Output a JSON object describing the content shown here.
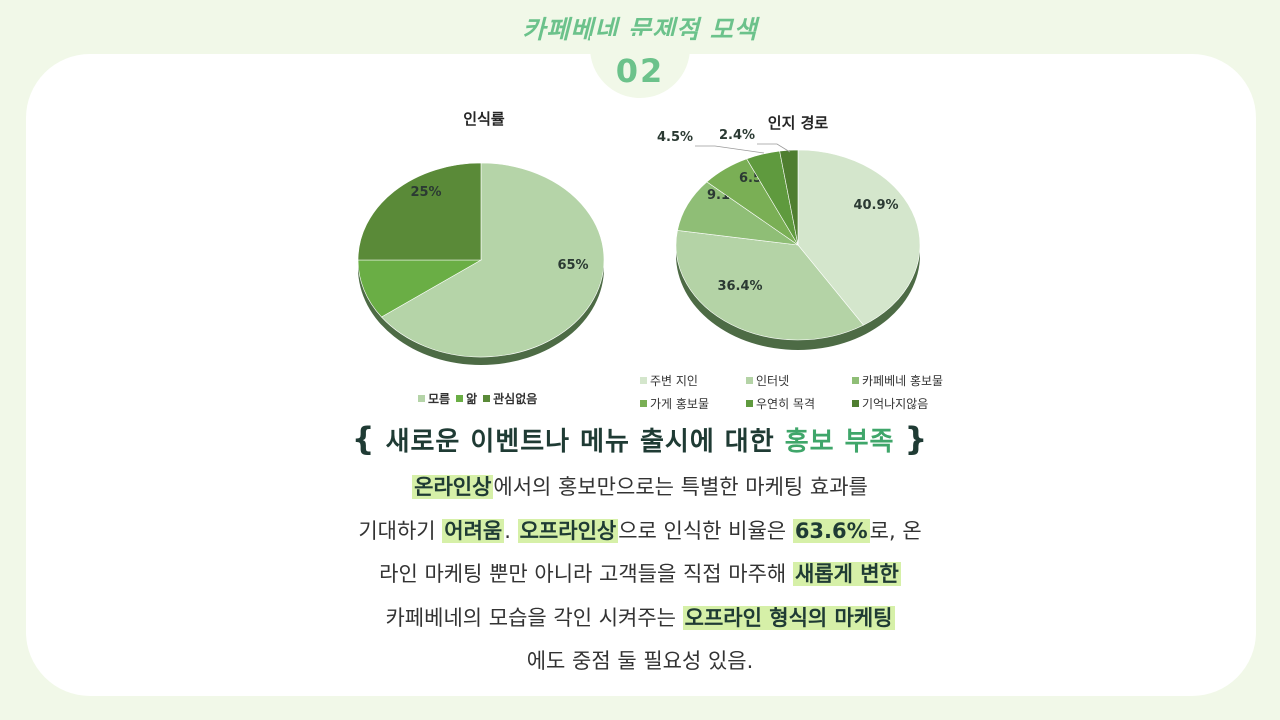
{
  "header": {
    "title": "카페베네 문제점 모색",
    "number": "02"
  },
  "chart_data": [
    {
      "type": "pie",
      "title": "인식률",
      "categories": [
        "모름",
        "앎",
        "관심없음"
      ],
      "values": [
        65,
        10,
        25
      ],
      "labels": [
        "65%",
        "10%",
        "25%"
      ],
      "colors": [
        "#b5d4a8",
        "#6aae45",
        "#5a8a38"
      ],
      "legend_position": "bottom"
    },
    {
      "type": "pie",
      "title": "인지 경로",
      "categories": [
        "주변 지인",
        "인터넷",
        "카페베네 홍보물",
        "가게 홍보물",
        "우연히 목격",
        "기억나지않음"
      ],
      "values": [
        40.9,
        36.4,
        9.1,
        6.5,
        4.5,
        2.4
      ],
      "labels": [
        "40.9%",
        "36.4%",
        "9.1%",
        "6.5%",
        "4.5%",
        "2.4%"
      ],
      "colors": [
        "#d4e6cc",
        "#b4d3a6",
        "#8fbe76",
        "#7aaf55",
        "#5f9a3e",
        "#4f7e30"
      ],
      "legend_position": "bottom"
    }
  ],
  "heading": {
    "left_brace": "{",
    "text": "새로운 이벤트나 메뉴 출시에 대한 ",
    "accent": "홍보 부족",
    "right_brace": "}"
  },
  "body": {
    "l1_hl": "온라인상",
    "l1_t": "에서의 홍보만으로는 특별한 마케팅 효과를",
    "l2_t1": "기대하기 ",
    "l2_hl1": "어려움",
    "l2_t2": ". ",
    "l2_hl2": "오프라인상",
    "l2_t3": "으로 인식한 비율은 ",
    "l2_hl3": "63.6%",
    "l2_t4": "로, 온",
    "l3_t": "라인 마케팅 뿐만 아니라 고객들을 직접 마주해 ",
    "l3_hl": "새롭게 변한",
    "l4_t": "카페베네의 모습을 각인 시켜주는 ",
    "l4_hl": "오프라인 형식의 마케팅",
    "l5_t": "에도 중점 둘 필요성 있음."
  }
}
